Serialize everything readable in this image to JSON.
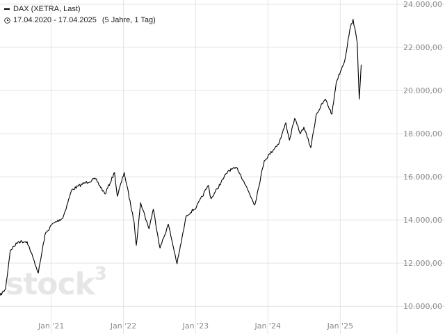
{
  "legend": {
    "series_name": "DAX (XETRA, Last)",
    "date_range": "17.04.2020 - 17.04.2025",
    "period": "(5 Jahre, 1 Tag)"
  },
  "watermark": {
    "text": "stock",
    "sup": "3"
  },
  "colors": {
    "line": "#000000",
    "grid": "#e4e4e4",
    "axis_text": "#8a8a8a",
    "watermark": "#e6e6e6"
  },
  "icons": {
    "clock": "clock-icon"
  },
  "chart_data": {
    "type": "line",
    "title": "DAX (XETRA, Last)",
    "xlabel": "",
    "ylabel": "",
    "ylim": [
      9700,
      24000
    ],
    "xlim": [
      "2020-04-17",
      "2025-10-15"
    ],
    "y_ticks": [
      {
        "value": 10000,
        "label": "10.000,00"
      },
      {
        "value": 12000,
        "label": "12.000,00"
      },
      {
        "value": 14000,
        "label": "14.000,00"
      },
      {
        "value": 16000,
        "label": "16.000,00"
      },
      {
        "value": 18000,
        "label": "18.000,00"
      },
      {
        "value": 20000,
        "label": "20.000,00"
      },
      {
        "value": 22000,
        "label": "22.000,00"
      },
      {
        "value": 24000,
        "label": "24.000,00"
      }
    ],
    "x_ticks": [
      {
        "date": "2021-01-01",
        "label": "Jan '21"
      },
      {
        "date": "2022-01-01",
        "label": "Jan '22"
      },
      {
        "date": "2023-01-01",
        "label": "Jan '23"
      },
      {
        "date": "2024-01-01",
        "label": "Jan '24"
      },
      {
        "date": "2025-01-01",
        "label": "Jan '25"
      }
    ],
    "grid": true,
    "series": [
      {
        "name": "DAX (XETRA, Last)",
        "x": [
          "2020-04-17",
          "2020-05-15",
          "2020-06-08",
          "2020-07-20",
          "2020-09-01",
          "2020-10-28",
          "2020-11-30",
          "2021-01-05",
          "2021-03-01",
          "2021-04-15",
          "2021-06-15",
          "2021-08-13",
          "2021-09-30",
          "2021-11-17",
          "2021-12-01",
          "2022-01-05",
          "2022-02-24",
          "2022-03-07",
          "2022-03-29",
          "2022-05-10",
          "2022-06-01",
          "2022-07-05",
          "2022-08-16",
          "2022-09-29",
          "2022-11-15",
          "2023-01-05",
          "2023-03-06",
          "2023-03-20",
          "2023-06-16",
          "2023-07-31",
          "2023-09-01",
          "2023-10-27",
          "2023-12-14",
          "2024-02-28",
          "2024-04-01",
          "2024-04-19",
          "2024-05-15",
          "2024-06-14",
          "2024-07-01",
          "2024-08-05",
          "2024-09-02",
          "2024-10-17",
          "2024-11-20",
          "2024-12-12",
          "2025-01-24",
          "2025-02-18",
          "2025-03-07",
          "2025-03-28",
          "2025-04-07",
          "2025-04-17"
        ],
        "values": [
          10500,
          10800,
          12600,
          13000,
          13000,
          11550,
          13300,
          13800,
          14100,
          15400,
          15700,
          15900,
          15200,
          16200,
          15100,
          16200,
          13900,
          12830,
          14800,
          13600,
          14500,
          12700,
          13800,
          11970,
          14200,
          14600,
          15600,
          14980,
          16300,
          16400,
          15800,
          14700,
          16750,
          17600,
          18500,
          17700,
          18700,
          18000,
          18300,
          17350,
          18900,
          19600,
          18900,
          20400,
          21400,
          22800,
          23300,
          22200,
          19600,
          21200
        ]
      }
    ]
  }
}
